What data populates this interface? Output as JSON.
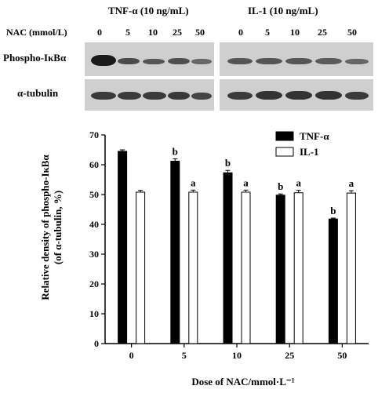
{
  "blot": {
    "group1_label": "TNF-α (10 ng/mL)",
    "group2_label": "IL-1 (10 ng/mL)",
    "nac_label": "NAC (mmol/L)",
    "doses": [
      "0",
      "5",
      "10",
      "25",
      "50"
    ],
    "row1_label": "Phospho-IκBα",
    "row2_label": "α-tubulin"
  },
  "chart_data": {
    "type": "bar",
    "categories": [
      "0",
      "5",
      "10",
      "25",
      "50"
    ],
    "series": [
      {
        "name": "TNF-α",
        "color": "#000000",
        "values": [
          64.5,
          61.2,
          57.3,
          49.8,
          41.8
        ],
        "errors": [
          0.5,
          0.8,
          0.8,
          0.4,
          0.3
        ],
        "labels": [
          "",
          "b",
          "b",
          "b",
          "b"
        ]
      },
      {
        "name": "IL-1",
        "color": "#ffffff",
        "values": [
          50.8,
          50.8,
          50.8,
          50.6,
          50.5
        ],
        "errors": [
          0.6,
          0.7,
          0.7,
          0.8,
          0.8
        ],
        "labels": [
          "",
          "a",
          "a",
          "a",
          "a"
        ]
      }
    ],
    "xlabel": "Dose of NAC/mmol·L⁻¹",
    "ylabel": "Relative density of phospho-IκBα",
    "ylabel2": "(of α-tubulin, %)",
    "ylim": [
      0,
      70
    ],
    "yticks": [
      0,
      10,
      20,
      30,
      40,
      50,
      60,
      70
    ],
    "legend_position": "top-right",
    "grid": false
  }
}
